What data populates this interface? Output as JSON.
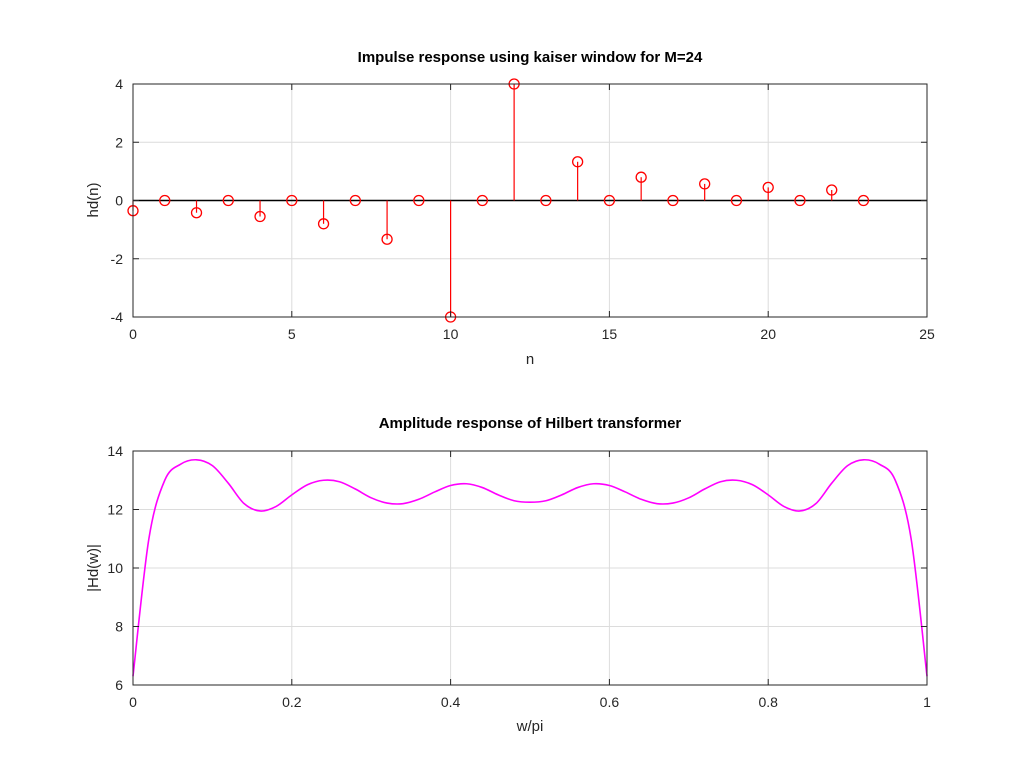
{
  "colors": {
    "stem": "#ff0000",
    "curve": "#ff00ff",
    "baseline": "#000000",
    "grid": "#dcdcdc",
    "axis": "#262626"
  },
  "chart_data": [
    {
      "type": "stem",
      "title": "Impulse response using kaiser window for M=24",
      "xlabel": "n",
      "ylabel": "hd(n)",
      "xlim": [
        0,
        25
      ],
      "ylim": [
        -4,
        4
      ],
      "xticks": [
        0,
        5,
        10,
        15,
        20,
        25
      ],
      "yticks": [
        -4,
        -2,
        0,
        2,
        4
      ],
      "grid": true,
      "x": [
        0,
        1,
        2,
        3,
        4,
        5,
        6,
        7,
        8,
        9,
        10,
        11,
        12,
        13,
        14,
        15,
        16,
        17,
        18,
        19,
        20,
        21,
        22,
        23
      ],
      "values": [
        -0.35,
        0,
        -0.42,
        0,
        -0.55,
        0,
        -0.8,
        0,
        -1.33,
        0,
        -4,
        0,
        4,
        0,
        1.33,
        0,
        0.8,
        0,
        0.57,
        0,
        0.45,
        0,
        0.36,
        0
      ]
    },
    {
      "type": "line",
      "title": "Amplitude response of Hilbert transformer",
      "xlabel": "w/pi",
      "ylabel": "|Hd(w)|",
      "xlim": [
        0,
        1
      ],
      "ylim": [
        6,
        14
      ],
      "xticks": [
        "0",
        "0.2",
        "0.4",
        "0.6",
        "0.8",
        "1"
      ],
      "yticks": [
        6,
        8,
        10,
        12,
        14
      ],
      "grid": true,
      "x": [
        0,
        0.02,
        0.04,
        0.06,
        0.08,
        0.1,
        0.12,
        0.14,
        0.16,
        0.18,
        0.2,
        0.22,
        0.24,
        0.26,
        0.28,
        0.3,
        0.32,
        0.34,
        0.36,
        0.38,
        0.4,
        0.42,
        0.44,
        0.46,
        0.48,
        0.5,
        0.52,
        0.54,
        0.56,
        0.58,
        0.6,
        0.62,
        0.64,
        0.66,
        0.68,
        0.7,
        0.72,
        0.74,
        0.76,
        0.78,
        0.8,
        0.82,
        0.84,
        0.86,
        0.88,
        0.9,
        0.92,
        0.94,
        0.96,
        0.98,
        1
      ],
      "values": [
        6.3,
        11.0,
        13.0,
        13.55,
        13.7,
        13.5,
        12.9,
        12.2,
        11.95,
        12.1,
        12.5,
        12.85,
        13.0,
        12.95,
        12.7,
        12.4,
        12.22,
        12.2,
        12.35,
        12.6,
        12.82,
        12.88,
        12.75,
        12.5,
        12.3,
        12.25,
        12.3,
        12.5,
        12.75,
        12.88,
        12.82,
        12.6,
        12.35,
        12.2,
        12.22,
        12.4,
        12.7,
        12.95,
        13.0,
        12.85,
        12.5,
        12.1,
        11.95,
        12.2,
        12.9,
        13.5,
        13.7,
        13.55,
        13.0,
        11.0,
        6.3
      ]
    }
  ]
}
